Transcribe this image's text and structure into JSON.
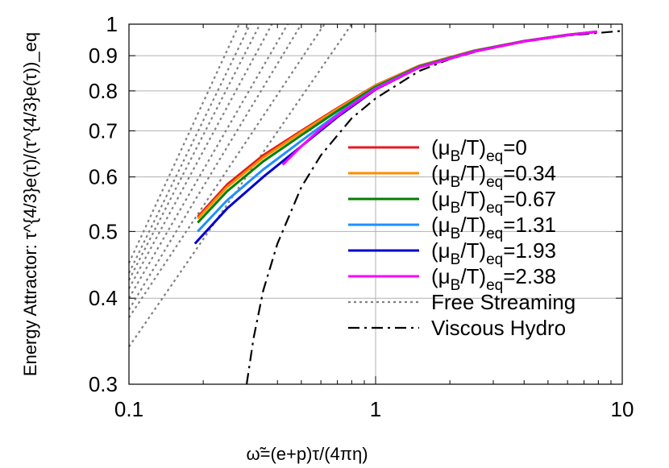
{
  "chart_data": {
    "type": "line",
    "title": "",
    "xlabel": "ω̃=(e+p)τ/(4πη)",
    "ylabel": "Energy Attractor: τ^{4/3}e(τ)/(τ^{4/3}e(τ))_eq",
    "xscale": "log",
    "yscale": "log",
    "xlim": [
      0.1,
      10
    ],
    "ylim": [
      0.3,
      1.0
    ],
    "grid": true,
    "legend_position": "center-right",
    "x_ticks": [
      {
        "value": 0.1,
        "label": "0.1"
      },
      {
        "value": 1,
        "label": "1"
      },
      {
        "value": 10,
        "label": "10"
      }
    ],
    "y_ticks": [
      {
        "value": 0.3,
        "label": "0.3"
      },
      {
        "value": 0.4,
        "label": "0.4"
      },
      {
        "value": 0.5,
        "label": "0.5"
      },
      {
        "value": 0.6,
        "label": "0.6"
      },
      {
        "value": 0.7,
        "label": "0.7"
      },
      {
        "value": 0.8,
        "label": "0.8"
      },
      {
        "value": 0.9,
        "label": "0.9"
      },
      {
        "value": 1.0,
        "label": "1"
      }
    ],
    "series": [
      {
        "name": "(μB/T)eq=0",
        "legend_main": "(μ",
        "legend_sub1": "B",
        "legend_mid": "/T)",
        "legend_sub2": "eq",
        "legend_tail": "=0",
        "color": "#e41a1c",
        "style": "solid",
        "x": [
          0.19,
          0.25,
          0.35,
          0.5,
          0.7,
          1.0,
          1.5,
          2.5,
          4.0,
          6.0,
          7.9
        ],
        "y": [
          0.525,
          0.585,
          0.645,
          0.7,
          0.755,
          0.815,
          0.87,
          0.915,
          0.945,
          0.965,
          0.975
        ]
      },
      {
        "name": "(μB/T)eq=0.34",
        "legend_main": "(μ",
        "legend_sub1": "B",
        "legend_mid": "/T)",
        "legend_sub2": "eq",
        "legend_tail": "=0.34",
        "color": "#ff8c00",
        "style": "solid",
        "x": [
          0.19,
          0.25,
          0.35,
          0.5,
          0.7,
          1.0,
          1.5,
          2.5,
          4.0,
          6.0,
          7.9
        ],
        "y": [
          0.522,
          0.58,
          0.64,
          0.697,
          0.753,
          0.814,
          0.869,
          0.915,
          0.945,
          0.965,
          0.975
        ]
      },
      {
        "name": "(μB/T)eq=0.67",
        "legend_main": "(μ",
        "legend_sub1": "B",
        "legend_mid": "/T)",
        "legend_sub2": "eq",
        "legend_tail": "=0.67",
        "color": "#008000",
        "style": "solid",
        "x": [
          0.19,
          0.25,
          0.35,
          0.5,
          0.7,
          1.0,
          1.5,
          2.5,
          4.0,
          6.0,
          7.9
        ],
        "y": [
          0.515,
          0.572,
          0.632,
          0.69,
          0.748,
          0.811,
          0.868,
          0.914,
          0.945,
          0.965,
          0.975
        ]
      },
      {
        "name": "(μB/T)eq=1.31",
        "legend_main": "(μ",
        "legend_sub1": "B",
        "legend_mid": "/T)",
        "legend_sub2": "eq",
        "legend_tail": "=1.31",
        "color": "#1e90ff",
        "style": "solid",
        "x": [
          0.19,
          0.25,
          0.35,
          0.5,
          0.7,
          1.0,
          1.5,
          2.5,
          4.0,
          6.0,
          7.9
        ],
        "y": [
          0.5,
          0.555,
          0.615,
          0.677,
          0.74,
          0.807,
          0.866,
          0.913,
          0.944,
          0.964,
          0.975
        ]
      },
      {
        "name": "(μB/T)eq=1.93",
        "legend_main": "(μ",
        "legend_sub1": "B",
        "legend_mid": "/T)",
        "legend_sub2": "eq",
        "legend_tail": "=1.93",
        "color": "#0000cd",
        "style": "solid",
        "x": [
          0.185,
          0.25,
          0.35,
          0.5,
          0.7,
          1.0,
          1.5,
          2.5,
          4.0,
          6.0,
          7.9
        ],
        "y": [
          0.48,
          0.54,
          0.6,
          0.665,
          0.733,
          0.804,
          0.865,
          0.912,
          0.944,
          0.964,
          0.975
        ]
      },
      {
        "name": "(μB/T)eq=2.38",
        "legend_main": "(μ",
        "legend_sub1": "B",
        "legend_mid": "/T)",
        "legend_sub2": "eq",
        "legend_tail": "=2.38",
        "color": "#ff00ff",
        "style": "solid",
        "x": [
          0.42,
          0.5,
          0.6,
          0.75,
          1.0,
          1.5,
          2.5,
          4.0,
          6.0,
          7.9
        ],
        "y": [
          0.625,
          0.665,
          0.705,
          0.75,
          0.805,
          0.865,
          0.912,
          0.944,
          0.964,
          0.975
        ]
      },
      {
        "name": "Free Streaming",
        "color": "#808080",
        "style": "dotted",
        "lines": [
          {
            "x": [
              0.1,
              0.8
            ],
            "y": [
              0.34,
              1.0
            ]
          },
          {
            "x": [
              0.1,
              0.62
            ],
            "y": [
              0.375,
              1.0
            ]
          },
          {
            "x": [
              0.1,
              0.5
            ],
            "y": [
              0.385,
              1.0
            ]
          },
          {
            "x": [
              0.1,
              0.44
            ],
            "y": [
              0.4,
              1.0
            ]
          },
          {
            "x": [
              0.1,
              0.38
            ],
            "y": [
              0.413,
              1.0
            ]
          },
          {
            "x": [
              0.1,
              0.34
            ],
            "y": [
              0.425,
              1.0
            ]
          },
          {
            "x": [
              0.1,
              0.31
            ],
            "y": [
              0.435,
              1.0
            ]
          },
          {
            "x": [
              0.1,
              0.28
            ],
            "y": [
              0.45,
              1.0
            ]
          }
        ]
      },
      {
        "name": "Viscous Hydro",
        "color": "#000000",
        "style": "dashdot",
        "x": [
          0.3,
          0.32,
          0.35,
          0.4,
          0.5,
          0.6,
          0.8,
          1.0,
          1.5,
          2.0,
          3.0,
          5.0,
          10.0
        ],
        "y": [
          0.3,
          0.35,
          0.41,
          0.48,
          0.58,
          0.645,
          0.73,
          0.78,
          0.855,
          0.89,
          0.927,
          0.957,
          0.978
        ]
      }
    ]
  }
}
